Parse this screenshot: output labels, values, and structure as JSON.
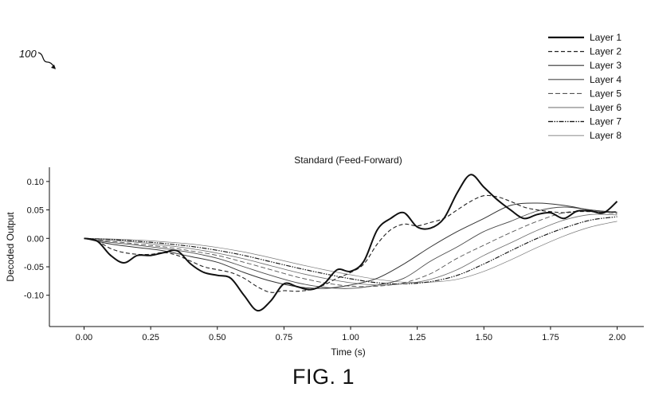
{
  "reference_numeral": "100",
  "figure_label": "FIG. 1",
  "chart_data": {
    "type": "line",
    "title": "Standard (Feed-Forward)",
    "xlabel": "Time (s)",
    "ylabel": "Decoded Output",
    "xlim": [
      -0.13,
      2.1
    ],
    "ylim": [
      -0.155,
      0.125
    ],
    "xticks": [
      0,
      0.25,
      0.5,
      0.75,
      1,
      1.25,
      1.5,
      1.75,
      2
    ],
    "xtick_labels": [
      "0.00",
      "0.25",
      "0.50",
      "0.75",
      "1.00",
      "1.25",
      "1.50",
      "1.75",
      "2.00"
    ],
    "yticks": [
      -0.1,
      -0.05,
      0,
      0.05,
      0.1
    ],
    "ytick_labels": [
      "-0.10",
      "-0.05",
      "0.00",
      "0.05",
      "0.10"
    ],
    "grid": false,
    "legend_position": "top-right",
    "series": [
      {
        "name": "Layer 1",
        "color": "#111111",
        "x": [
          0,
          0.05,
          0.1,
          0.15,
          0.2,
          0.25,
          0.3,
          0.35,
          0.4,
          0.45,
          0.5,
          0.55,
          0.6,
          0.65,
          0.7,
          0.75,
          0.8,
          0.85,
          0.9,
          0.95,
          1,
          1.05,
          1.1,
          1.15,
          1.2,
          1.25,
          1.3,
          1.35,
          1.4,
          1.45,
          1.5,
          1.55,
          1.6,
          1.65,
          1.7,
          1.75,
          1.8,
          1.85,
          1.9,
          1.95,
          2
        ],
        "y": [
          0,
          -0.005,
          -0.03,
          -0.043,
          -0.03,
          -0.03,
          -0.025,
          -0.022,
          -0.045,
          -0.06,
          -0.065,
          -0.07,
          -0.1,
          -0.127,
          -0.11,
          -0.08,
          -0.085,
          -0.09,
          -0.08,
          -0.055,
          -0.058,
          -0.04,
          0.015,
          0.035,
          0.045,
          0.02,
          0.018,
          0.035,
          0.08,
          0.112,
          0.09,
          0.068,
          0.05,
          0.035,
          0.042,
          0.045,
          0.035,
          0.048,
          0.048,
          0.045,
          0.065
        ]
      },
      {
        "name": "Layer 2",
        "color": "#222222",
        "x": [
          0,
          0.05,
          0.1,
          0.15,
          0.2,
          0.25,
          0.3,
          0.35,
          0.4,
          0.45,
          0.5,
          0.55,
          0.6,
          0.65,
          0.7,
          0.75,
          0.8,
          0.85,
          0.9,
          0.95,
          1,
          1.05,
          1.1,
          1.15,
          1.2,
          1.25,
          1.3,
          1.35,
          1.4,
          1.45,
          1.5,
          1.55,
          1.6,
          1.65,
          1.7,
          1.75,
          1.8,
          1.85,
          1.9,
          1.95,
          2
        ],
        "y": [
          0,
          -0.005,
          -0.018,
          -0.025,
          -0.028,
          -0.028,
          -0.025,
          -0.03,
          -0.04,
          -0.05,
          -0.055,
          -0.06,
          -0.07,
          -0.085,
          -0.095,
          -0.092,
          -0.093,
          -0.09,
          -0.082,
          -0.07,
          -0.06,
          -0.045,
          -0.01,
          0.015,
          0.025,
          0.022,
          0.028,
          0.035,
          0.05,
          0.065,
          0.075,
          0.073,
          0.065,
          0.055,
          0.05,
          0.047,
          0.045,
          0.047,
          0.047,
          0.046,
          0.047
        ]
      },
      {
        "name": "Layer 3",
        "color": "#333333",
        "x": [
          0,
          0.1,
          0.2,
          0.3,
          0.4,
          0.5,
          0.6,
          0.7,
          0.8,
          0.9,
          1,
          1.1,
          1.2,
          1.3,
          1.4,
          1.5,
          1.6,
          1.7,
          1.8,
          1.9,
          2
        ],
        "y": [
          0,
          -0.01,
          -0.016,
          -0.022,
          -0.032,
          -0.042,
          -0.06,
          -0.075,
          -0.085,
          -0.088,
          -0.082,
          -0.07,
          -0.045,
          -0.015,
          0.012,
          0.035,
          0.058,
          0.062,
          0.058,
          0.05,
          0.046
        ]
      },
      {
        "name": "Layer 4",
        "color": "#4a4a4a",
        "x": [
          0,
          0.1,
          0.2,
          0.3,
          0.4,
          0.5,
          0.6,
          0.7,
          0.8,
          0.9,
          1,
          1.1,
          1.2,
          1.3,
          1.4,
          1.5,
          1.6,
          1.7,
          1.8,
          1.9,
          2
        ],
        "y": [
          0,
          -0.007,
          -0.012,
          -0.018,
          -0.025,
          -0.035,
          -0.05,
          -0.065,
          -0.078,
          -0.086,
          -0.088,
          -0.082,
          -0.07,
          -0.04,
          -0.015,
          0.012,
          0.03,
          0.048,
          0.055,
          0.05,
          0.045
        ]
      },
      {
        "name": "Layer 5",
        "color": "#555555",
        "x": [
          0,
          0.1,
          0.2,
          0.3,
          0.4,
          0.5,
          0.6,
          0.7,
          0.8,
          0.9,
          1,
          1.1,
          1.2,
          1.3,
          1.4,
          1.5,
          1.6,
          1.7,
          1.8,
          1.9,
          2
        ],
        "y": [
          0,
          -0.005,
          -0.01,
          -0.015,
          -0.022,
          -0.03,
          -0.042,
          -0.055,
          -0.068,
          -0.078,
          -0.084,
          -0.084,
          -0.078,
          -0.062,
          -0.035,
          -0.012,
          0.01,
          0.03,
          0.045,
          0.048,
          0.043
        ]
      },
      {
        "name": "Layer 6",
        "color": "#6a6a6a",
        "x": [
          0,
          0.1,
          0.2,
          0.3,
          0.4,
          0.5,
          0.6,
          0.7,
          0.8,
          0.9,
          1,
          1.1,
          1.2,
          1.3,
          1.4,
          1.5,
          1.6,
          1.7,
          1.8,
          1.9,
          2
        ],
        "y": [
          0,
          -0.003,
          -0.007,
          -0.012,
          -0.018,
          -0.026,
          -0.036,
          -0.048,
          -0.06,
          -0.07,
          -0.078,
          -0.082,
          -0.08,
          -0.072,
          -0.055,
          -0.03,
          -0.008,
          0.014,
          0.032,
          0.042,
          0.041
        ]
      },
      {
        "name": "Layer 7",
        "color": "#1a1a1a",
        "x": [
          0,
          0.1,
          0.2,
          0.3,
          0.4,
          0.5,
          0.6,
          0.7,
          0.8,
          0.9,
          1,
          1.1,
          1.2,
          1.3,
          1.4,
          1.5,
          1.6,
          1.7,
          1.8,
          1.9,
          2
        ],
        "y": [
          0,
          -0.002,
          -0.005,
          -0.009,
          -0.014,
          -0.021,
          -0.03,
          -0.041,
          -0.052,
          -0.062,
          -0.071,
          -0.078,
          -0.08,
          -0.076,
          -0.065,
          -0.045,
          -0.022,
          0.0,
          0.018,
          0.032,
          0.038
        ]
      },
      {
        "name": "Layer 8",
        "color": "#7a7a7a",
        "x": [
          0,
          0.1,
          0.2,
          0.3,
          0.4,
          0.5,
          0.6,
          0.7,
          0.8,
          0.9,
          1,
          1.1,
          1.2,
          1.3,
          1.4,
          1.5,
          1.6,
          1.7,
          1.8,
          1.9,
          2
        ],
        "y": [
          0,
          -0.001,
          -0.003,
          -0.006,
          -0.01,
          -0.016,
          -0.024,
          -0.034,
          -0.045,
          -0.055,
          -0.064,
          -0.072,
          -0.077,
          -0.077,
          -0.072,
          -0.058,
          -0.038,
          -0.016,
          0.004,
          0.02,
          0.03
        ]
      }
    ]
  }
}
